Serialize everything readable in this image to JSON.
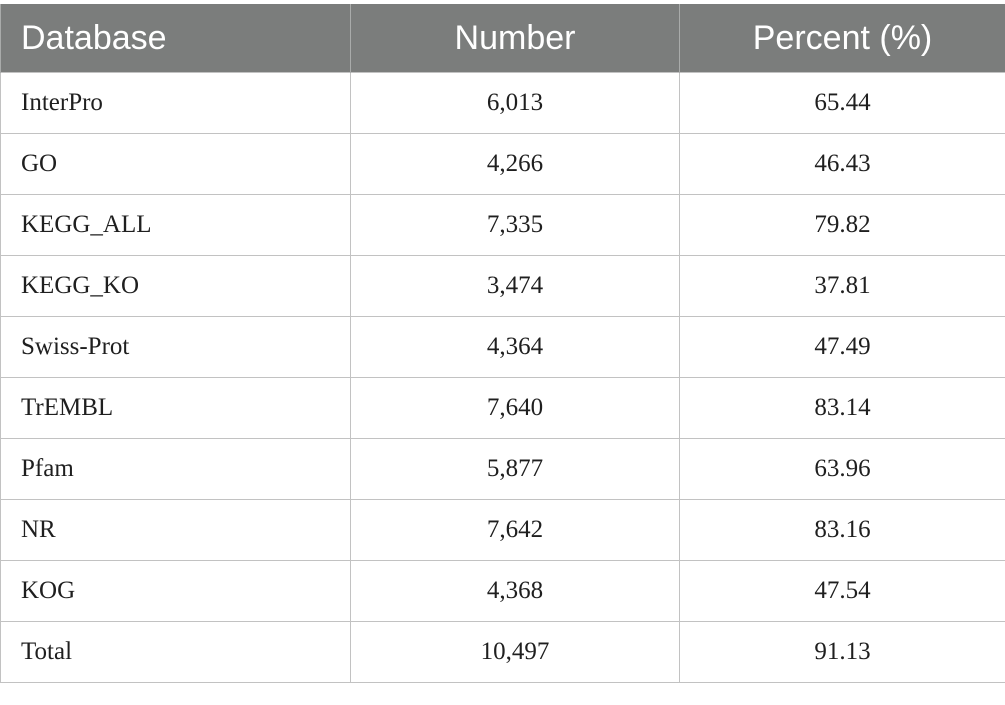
{
  "table": {
    "headers": [
      "Database",
      "Number",
      "Percent (%)"
    ],
    "rows": [
      [
        "InterPro",
        "6,013",
        "65.44"
      ],
      [
        "GO",
        "4,266",
        "46.43"
      ],
      [
        "KEGG_ALL",
        "7,335",
        "79.82"
      ],
      [
        "KEGG_KO",
        "3,474",
        "37.81"
      ],
      [
        "Swiss-Prot",
        "4,364",
        "47.49"
      ],
      [
        "TrEMBL",
        "7,640",
        "83.14"
      ],
      [
        "Pfam",
        "5,877",
        "63.96"
      ],
      [
        "NR",
        "7,642",
        "83.16"
      ],
      [
        "KOG",
        "4,368",
        "47.54"
      ],
      [
        "Total",
        "10,497",
        "91.13"
      ]
    ],
    "header_bg": "#7b7d7c",
    "header_text_color": "#ffffff"
  }
}
